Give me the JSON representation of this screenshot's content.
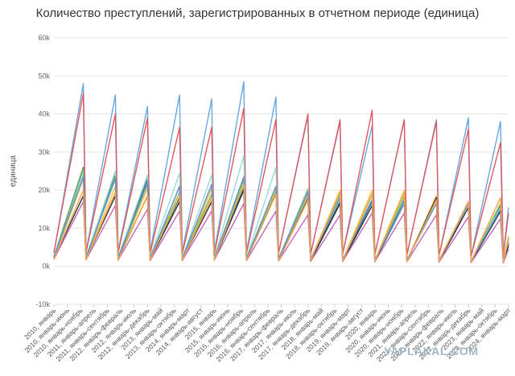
{
  "chart_data": {
    "type": "line",
    "title": "Количество преступлений, зарегистрированных в отчетном периоде (единица)",
    "ylabel": "единица",
    "xlabel": "",
    "ylim": [
      -10000,
      60000
    ],
    "yticks": [
      -10000,
      0,
      10000,
      20000,
      30000,
      40000,
      50000,
      60000
    ],
    "ytick_labels": [
      "-10k",
      "0k",
      "10k",
      "20k",
      "30k",
      "40k",
      "50k",
      "60k"
    ],
    "grid": true,
    "x_tick_labels": [
      "2010, январь",
      "2010, январь-июнь",
      "2010, январь-ноябрь",
      "2011, январь-апрель",
      "2011, январь-сентябрь",
      "2012, январь-февраль",
      "2012, январь-июль",
      "2012, январь-декабрь",
      "2013, январь-май",
      "2013, январь-октябрь",
      "2014, январь-март",
      "2014, январь-август",
      "2015, январь",
      "2015, январь-июнь",
      "2015, январь-ноябрь",
      "2016, январь-апрель",
      "2016, январь-сентябрь",
      "2017, январь-февраль",
      "2017, январь-июль",
      "2017, январь-декабрь",
      "2018, январь-май",
      "2018, январь-октябрь",
      "2019, январь-март",
      "2019, январь-август",
      "2020, январь",
      "2020, январь-июнь",
      "2020, январь-ноябрь",
      "2021, январь-апрель",
      "2021, январь-сентябрь",
      "2022, январь-февраль",
      "2022, январь-июль",
      "2022, январь-декабрь",
      "2023, январь-май",
      "2023, январь-октябрь",
      "2024, январь-март"
    ],
    "period_start_years": [
      2010,
      2011,
      2012,
      2013,
      2014,
      2015,
      2016,
      2017,
      2018,
      2019,
      2020,
      2021,
      2022,
      2023,
      2024
    ],
    "series": [
      {
        "color": "#6aa6e0",
        "values": [
          [
            3500,
            48000
          ],
          [
            3800,
            45000
          ],
          [
            3900,
            42000
          ],
          [
            3900,
            45000
          ],
          [
            3800,
            44000
          ],
          [
            3900,
            48500
          ],
          [
            3800,
            44500
          ],
          [
            3400,
            39500
          ],
          [
            3300,
            38000
          ],
          [
            3300,
            37000
          ],
          [
            3000,
            38500
          ],
          [
            3000,
            38500
          ],
          [
            2900,
            39000
          ],
          [
            2800,
            38000
          ],
          [
            3000,
            15500
          ]
        ]
      },
      {
        "color": "#e0585e",
        "values": [
          [
            3600,
            45500
          ],
          [
            3600,
            40000
          ],
          [
            3500,
            39000
          ],
          [
            3400,
            36500
          ],
          [
            3300,
            36500
          ],
          [
            3400,
            41500
          ],
          [
            3400,
            38500
          ],
          [
            3400,
            40000
          ],
          [
            3200,
            38500
          ],
          [
            3200,
            41000
          ],
          [
            3000,
            38500
          ],
          [
            3000,
            38000
          ],
          [
            2900,
            36000
          ],
          [
            2700,
            32500
          ],
          [
            2700,
            14000
          ]
        ]
      },
      {
        "color": "#2f6f6a",
        "values": [
          [
            2500,
            26000
          ],
          [
            2300,
            24000
          ],
          [
            2000,
            23000
          ],
          [
            1800,
            18000
          ],
          [
            1800,
            19000
          ],
          [
            1900,
            20500
          ],
          [
            1700,
            19500
          ],
          [
            1500,
            18000
          ],
          [
            1400,
            17000
          ],
          [
            1400,
            17000
          ],
          [
            1300,
            17500
          ],
          [
            1300,
            18500
          ],
          [
            1200,
            16500
          ],
          [
            1100,
            16000
          ],
          [
            1000,
            6000
          ]
        ]
      },
      {
        "color": "#9ad9d2",
        "values": [
          [
            2600,
            24500
          ],
          [
            2500,
            25000
          ],
          [
            2400,
            24000
          ],
          [
            2400,
            24500
          ],
          [
            2200,
            24000
          ],
          [
            2300,
            29000
          ],
          [
            2200,
            26000
          ],
          [
            2100,
            20500
          ],
          [
            2000,
            18500
          ],
          [
            1800,
            18500
          ],
          [
            1800,
            18000
          ],
          [
            1700,
            17500
          ],
          [
            1600,
            17000
          ],
          [
            1500,
            15500
          ],
          [
            1400,
            7500
          ]
        ]
      },
      {
        "color": "#f0c23e",
        "values": [
          [
            2000,
            23000
          ],
          [
            1900,
            21000
          ],
          [
            1900,
            20500
          ],
          [
            1800,
            21000
          ],
          [
            1700,
            20500
          ],
          [
            1800,
            23500
          ],
          [
            1800,
            20500
          ],
          [
            1700,
            19000
          ],
          [
            1700,
            20000
          ],
          [
            1600,
            20000
          ],
          [
            1500,
            20000
          ],
          [
            1400,
            18500
          ],
          [
            1400,
            17000
          ],
          [
            1300,
            18000
          ],
          [
            1200,
            8000
          ]
        ]
      },
      {
        "color": "#7ec36b",
        "values": [
          [
            2300,
            25500
          ],
          [
            2100,
            23500
          ],
          [
            2000,
            21500
          ],
          [
            1900,
            19500
          ],
          [
            1800,
            19000
          ],
          [
            1900,
            22500
          ],
          [
            1800,
            19500
          ],
          [
            1700,
            20000
          ],
          [
            1600,
            19000
          ],
          [
            1600,
            19000
          ],
          [
            1500,
            18500
          ],
          [
            1400,
            17500
          ],
          [
            1400,
            16500
          ],
          [
            1300,
            16500
          ],
          [
            1200,
            7500
          ]
        ]
      },
      {
        "color": "#2e2e3a",
        "values": [
          [
            2100,
            18500
          ],
          [
            1900,
            18500
          ],
          [
            1800,
            18500
          ],
          [
            1700,
            17000
          ],
          [
            1700,
            17000
          ],
          [
            1700,
            20000
          ],
          [
            1600,
            19000
          ],
          [
            1500,
            17500
          ],
          [
            1400,
            16500
          ],
          [
            1300,
            16000
          ],
          [
            1300,
            16500
          ],
          [
            1300,
            18000
          ],
          [
            1200,
            15500
          ],
          [
            1100,
            14500
          ],
          [
            1000,
            5500
          ]
        ]
      },
      {
        "color": "#c067b8",
        "values": [
          [
            1800,
            17000
          ],
          [
            1700,
            16000
          ],
          [
            1600,
            15000
          ],
          [
            1500,
            14500
          ],
          [
            1500,
            14500
          ],
          [
            1600,
            16500
          ],
          [
            1500,
            14500
          ],
          [
            1400,
            13500
          ],
          [
            1300,
            13500
          ],
          [
            1300,
            14000
          ],
          [
            1200,
            14000
          ],
          [
            1200,
            13500
          ],
          [
            1100,
            13000
          ],
          [
            1000,
            12500
          ],
          [
            900,
            4500
          ]
        ]
      },
      {
        "color": "#5d8fcf",
        "values": [
          [
            2400,
            23500
          ],
          [
            2300,
            23000
          ],
          [
            2200,
            22000
          ],
          [
            2100,
            21000
          ],
          [
            2000,
            21500
          ],
          [
            2100,
            23500
          ],
          [
            2000,
            21000
          ],
          [
            1900,
            19500
          ],
          [
            1800,
            18000
          ],
          [
            1700,
            17500
          ],
          [
            1600,
            16500
          ],
          [
            1600,
            16500
          ],
          [
            1500,
            16500
          ],
          [
            1400,
            15000
          ],
          [
            1300,
            6500
          ]
        ]
      },
      {
        "color": "#f4a54a",
        "values": [
          [
            1900,
            20000
          ],
          [
            1800,
            19500
          ],
          [
            1700,
            18500
          ],
          [
            1700,
            18500
          ],
          [
            1600,
            18000
          ],
          [
            1700,
            21500
          ],
          [
            1600,
            19000
          ],
          [
            1500,
            17500
          ],
          [
            1500,
            19500
          ],
          [
            1400,
            19000
          ],
          [
            1400,
            19500
          ],
          [
            1300,
            17500
          ],
          [
            1300,
            17000
          ],
          [
            1200,
            18000
          ],
          [
            1100,
            7000
          ]
        ]
      }
    ]
  }
}
